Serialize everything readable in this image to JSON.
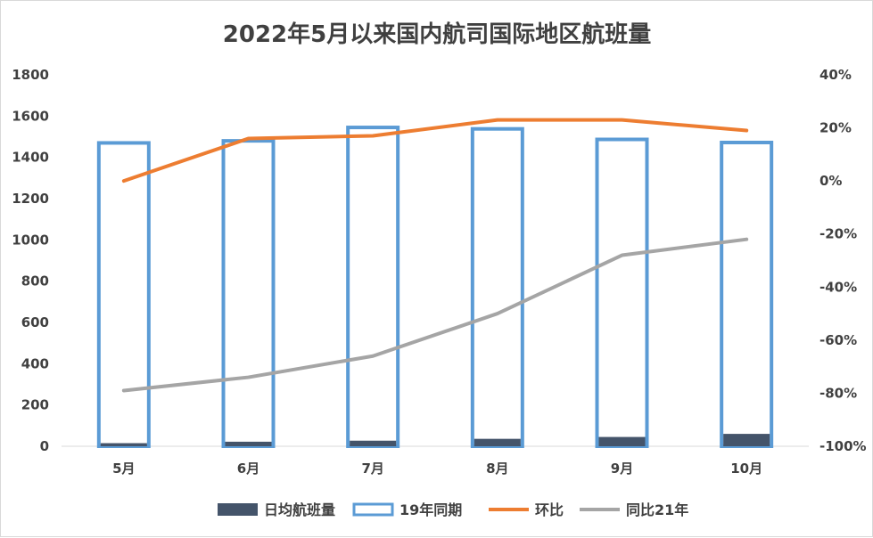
{
  "chart_data": {
    "type": "bar",
    "title": "2022年5月以来国内航司国际地区航班量",
    "categories": [
      "5月",
      "6月",
      "7月",
      "8月",
      "9月",
      "10月"
    ],
    "y_left": {
      "ylim": [
        0,
        1800
      ],
      "ticks": [
        "0",
        "200",
        "400",
        "600",
        "800",
        "1000",
        "1200",
        "1400",
        "1600",
        "1800"
      ]
    },
    "y_right": {
      "ylim": [
        -100,
        40
      ],
      "ticks": [
        "-100%",
        "-80%",
        "-60%",
        "-40%",
        "-20%",
        "0%",
        "20%",
        "40%"
      ]
    },
    "series": [
      {
        "name": "日均航班量",
        "type": "bar",
        "axis": "left",
        "color": "#44546a",
        "values": [
          15,
          22,
          27,
          36,
          45,
          60
        ]
      },
      {
        "name": "19年同期",
        "type": "bar-outline",
        "axis": "left",
        "color": "#5b9bd5",
        "values": [
          1470,
          1480,
          1545,
          1538,
          1487,
          1472
        ]
      },
      {
        "name": "环比",
        "type": "line",
        "axis": "right",
        "color": "#ed7d31",
        "values": [
          0,
          16,
          17,
          23,
          23,
          19
        ]
      },
      {
        "name": "同比21年",
        "type": "line",
        "axis": "right",
        "color": "#a5a5a5",
        "values": [
          -79,
          -74,
          -66,
          -50,
          -28,
          -22
        ]
      }
    ],
    "legend": "bottom",
    "grid": false
  }
}
